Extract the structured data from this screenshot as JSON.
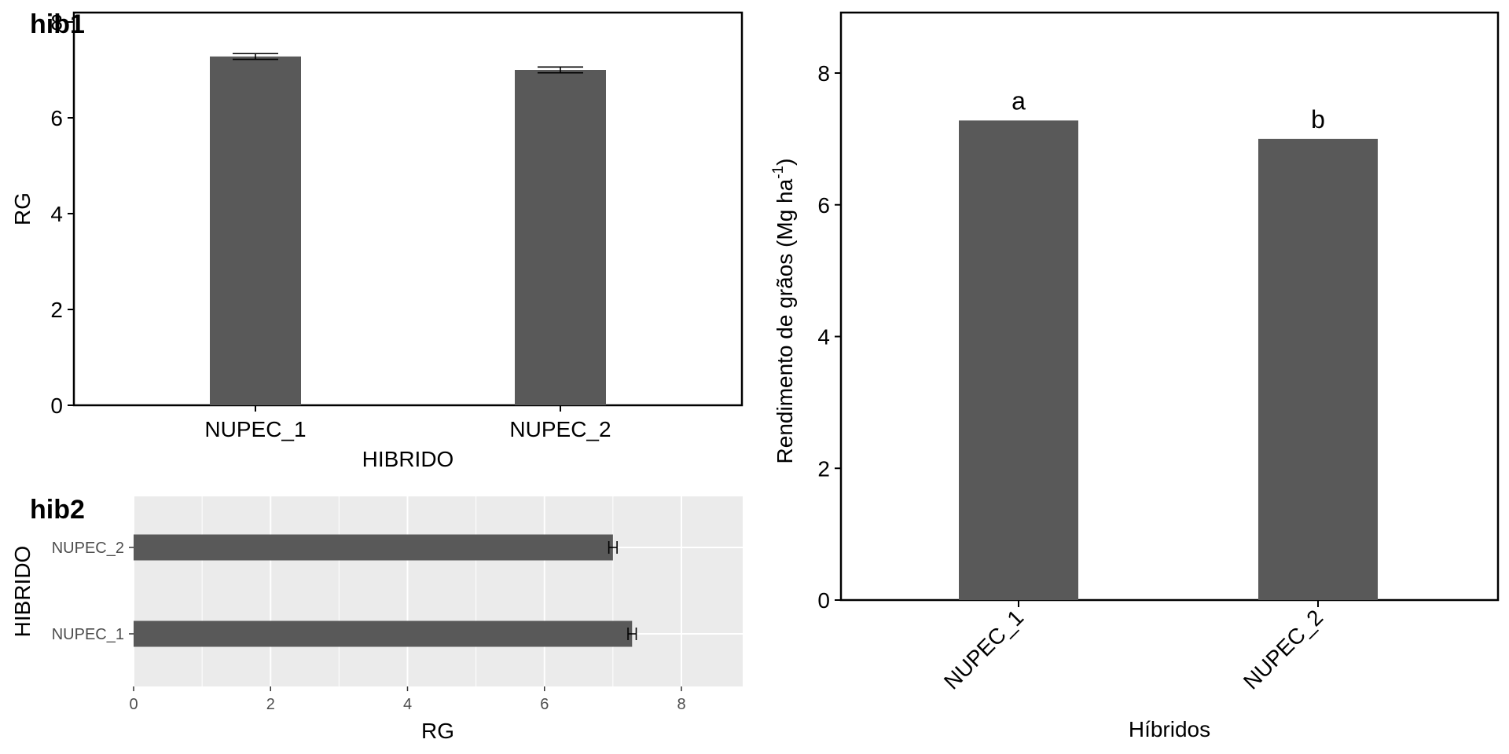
{
  "colors": {
    "bar": "#595959",
    "panel_bg_gray": "#ebebeb",
    "grid_white": "#ffffff",
    "axis": "#000000"
  },
  "chart_data": [
    {
      "id": "hib1",
      "type": "bar",
      "tag": "hib1",
      "orientation": "vertical",
      "categories": [
        "NUPEC_1",
        "NUPEC_2"
      ],
      "values": [
        7.28,
        7.0
      ],
      "error_bars": [
        [
          7.22,
          7.34
        ],
        [
          6.94,
          7.06
        ]
      ],
      "xlabel": "HIBRIDO",
      "ylabel": "RG",
      "ylim": [
        0,
        8.6
      ],
      "yticks": [
        0,
        2,
        4,
        6,
        8
      ],
      "yticklabels": [
        "0",
        "2",
        "4",
        "6",
        "8"
      ],
      "grid": false
    },
    {
      "id": "hib2",
      "type": "bar",
      "tag": "hib2",
      "orientation": "horizontal",
      "categories": [
        "NUPEC_1",
        "NUPEC_2"
      ],
      "values": [
        7.28,
        7.0
      ],
      "error_bars": [
        [
          7.22,
          7.34
        ],
        [
          6.94,
          7.06
        ]
      ],
      "xlabel": "RG",
      "ylabel": "HIBRIDO",
      "xlim": [
        0,
        8.9
      ],
      "xticks": [
        0,
        2,
        4,
        6,
        8
      ],
      "xticklabels": [
        "0",
        "2",
        "4",
        "6",
        "8"
      ],
      "grid": true
    },
    {
      "id": "main",
      "type": "bar",
      "orientation": "vertical",
      "categories": [
        "NUPEC_1",
        "NUPEC_2"
      ],
      "values": [
        7.28,
        7.0
      ],
      "annotations": [
        "a",
        "b"
      ],
      "xlabel": "Híbridos",
      "ylabel": {
        "prefix": "Rendimento de grãos (Mg ha",
        "sup": "-1",
        "suffix": ")"
      },
      "ylim": [
        0,
        8.9
      ],
      "yticks": [
        0,
        2,
        4,
        6,
        8
      ],
      "yticklabels": [
        "0",
        "2",
        "4",
        "6",
        "8"
      ],
      "grid": false
    }
  ]
}
